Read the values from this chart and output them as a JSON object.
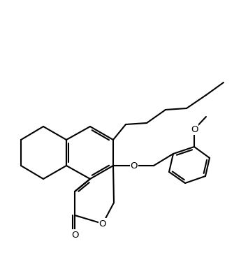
{
  "bg": "#ffffff",
  "lc": "#000000",
  "lw": 1.5,
  "atoms": {
    "O_label": "O",
    "O_methoxy": "O",
    "O_ether": "O",
    "O_carbonyl": "O"
  }
}
